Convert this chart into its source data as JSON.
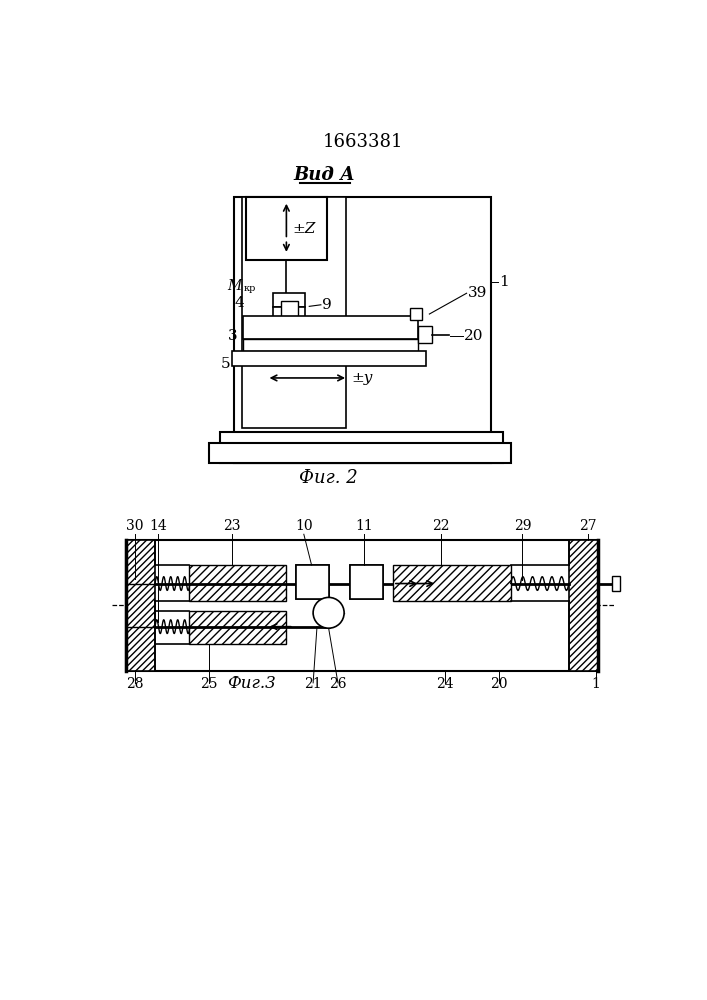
{
  "title": "1663381",
  "fig2_label": "Фиг. 2",
  "fig3_label": "Фиг.3",
  "vid_label": "Вид А",
  "bg_color": "#ffffff",
  "line_color": "#000000"
}
